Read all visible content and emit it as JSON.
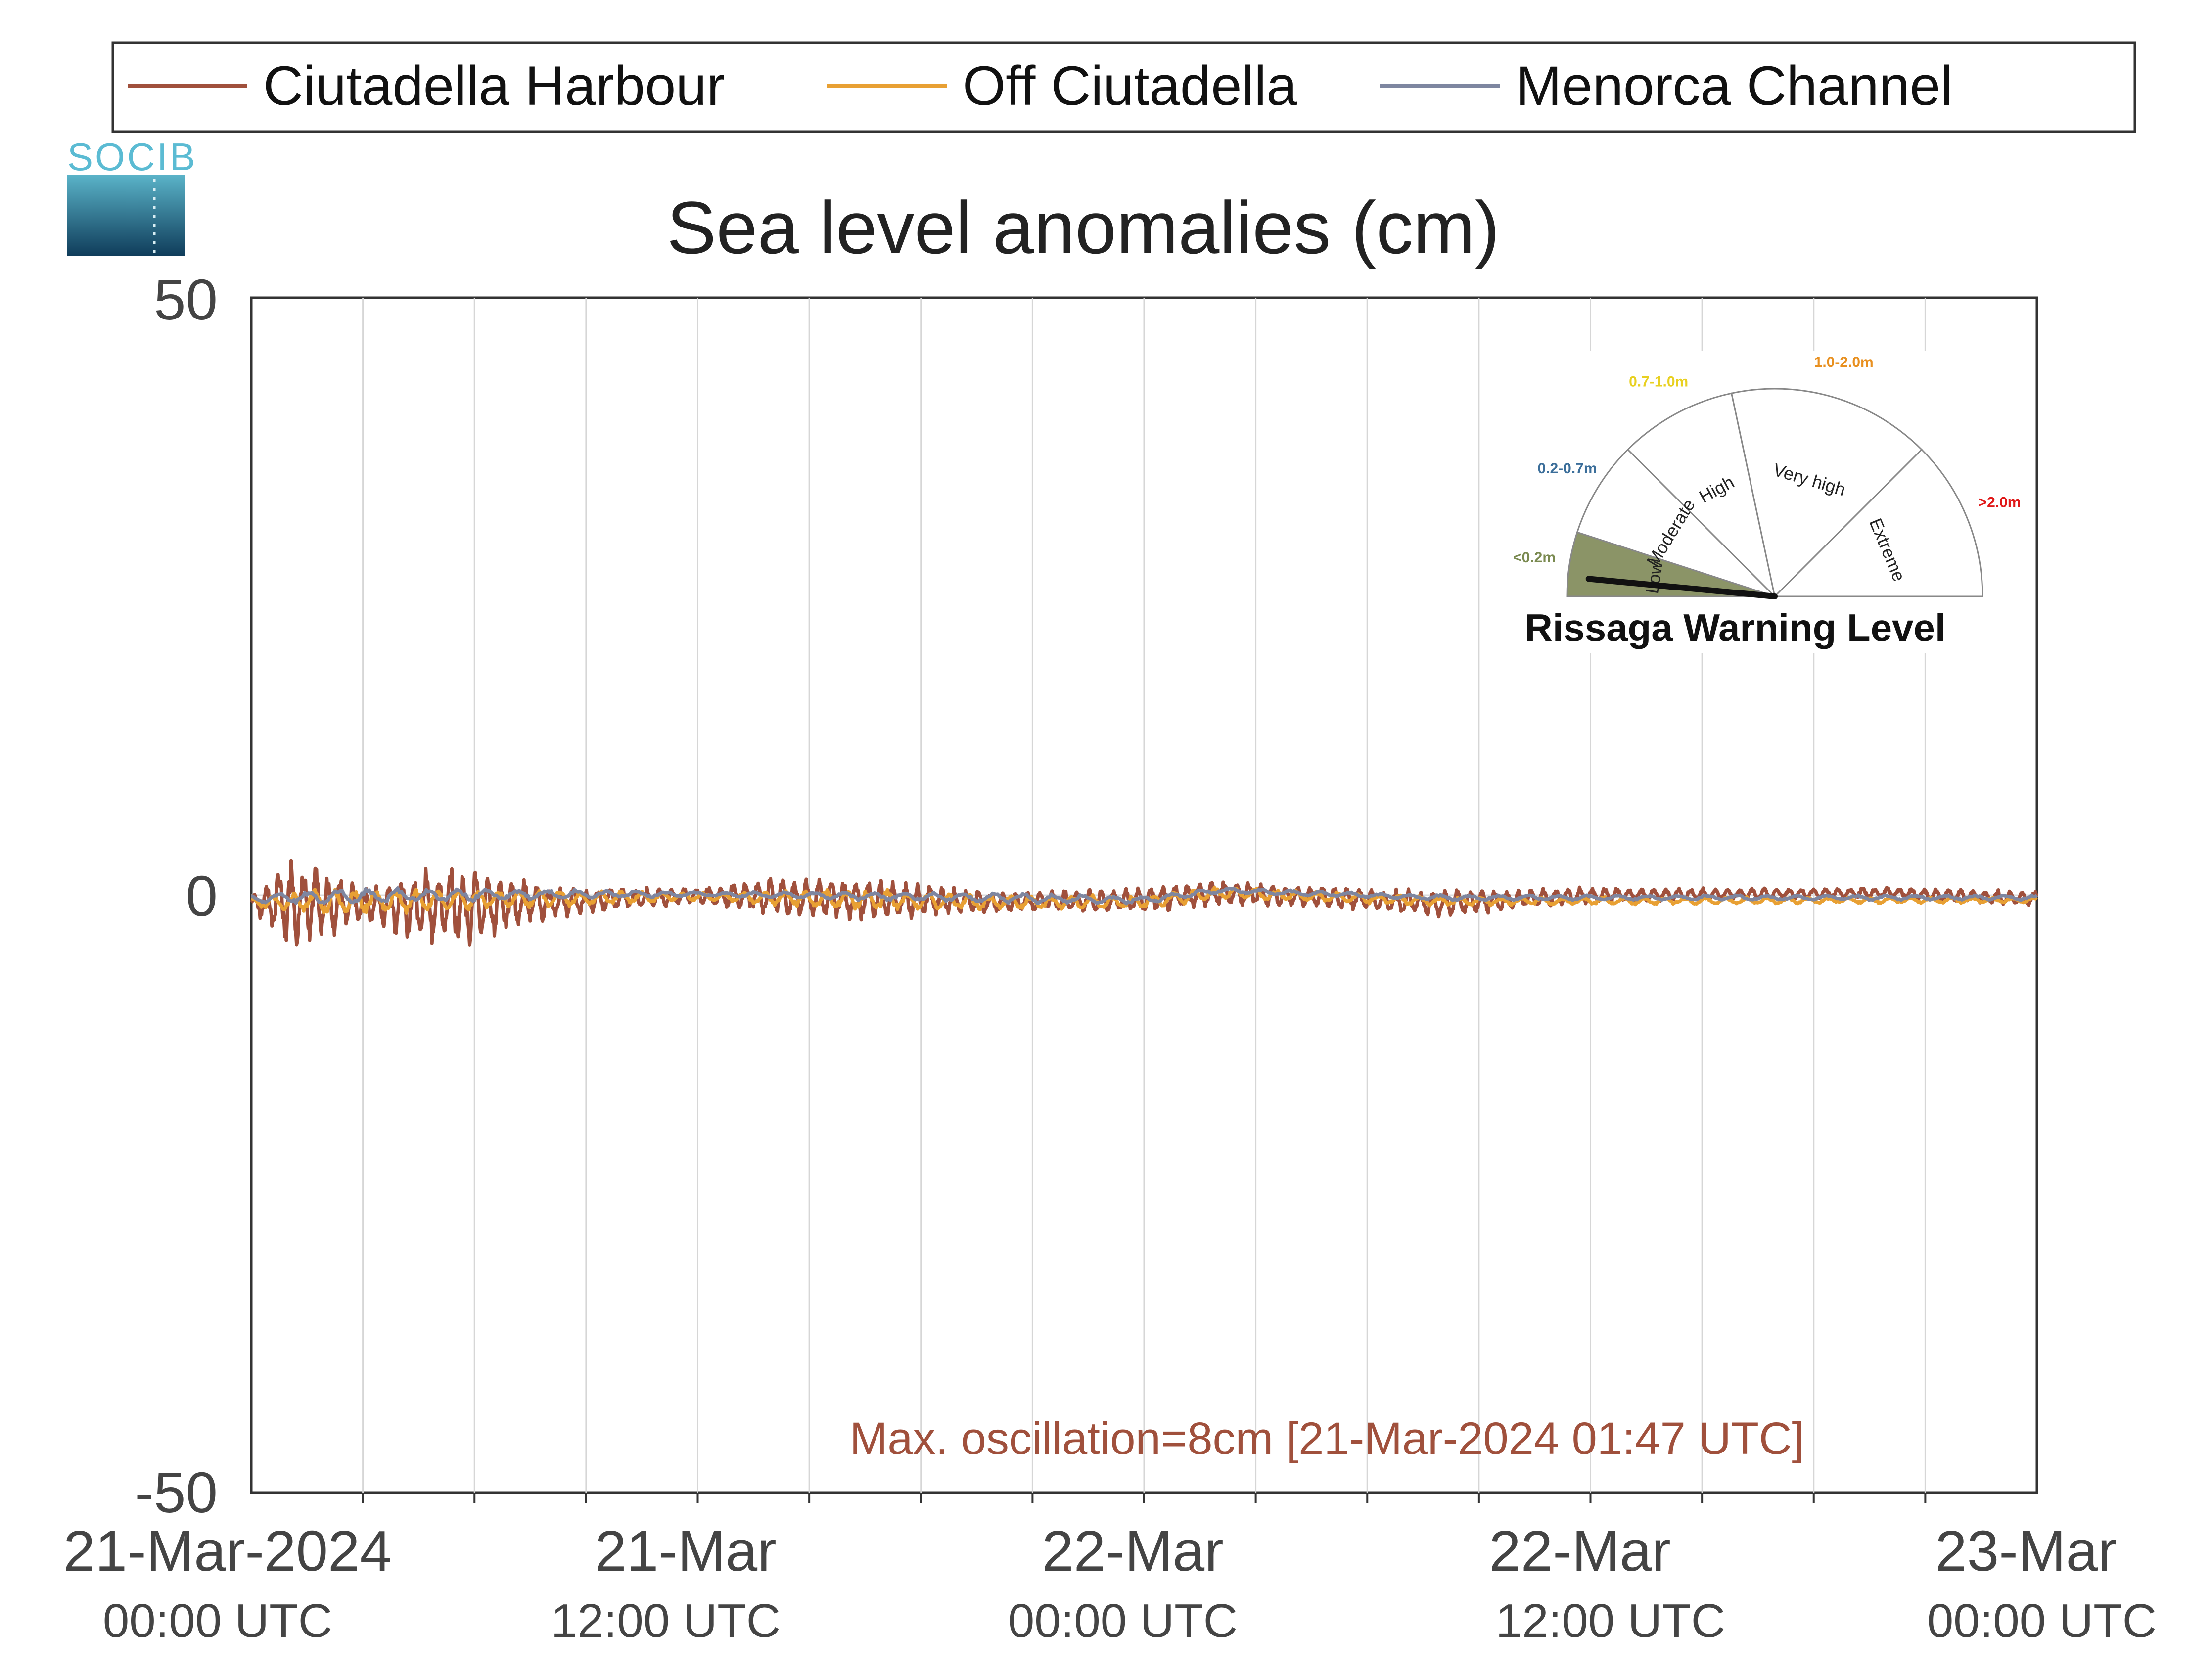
{
  "logo": {
    "text": "SOCIB"
  },
  "legend": {
    "items": [
      {
        "label": "Ciutadella Harbour",
        "color": "#a0503c"
      },
      {
        "label": "Off Ciutadella",
        "color": "#e8a033"
      },
      {
        "label": "Menorca Channel",
        "color": "#7e86a0"
      }
    ]
  },
  "chart_data": {
    "type": "line",
    "title": "Sea level anomalies (cm)",
    "xlabel": "",
    "ylabel": "",
    "ylim": [
      -50,
      50
    ],
    "y_ticks": [
      "50",
      "0",
      "-50"
    ],
    "x_range": [
      "2024-03-21T00:00",
      "2024-03-23T00:00"
    ],
    "x_ticks": [
      {
        "main": "21-Mar-2024",
        "sub": "00:00 UTC"
      },
      {
        "main": "21-Mar",
        "sub": "12:00 UTC"
      },
      {
        "main": "22-Mar",
        "sub": "00:00 UTC"
      },
      {
        "main": "22-Mar",
        "sub": "12:00 UTC"
      },
      {
        "main": "23-Mar",
        "sub": "00:00 UTC"
      }
    ],
    "grid": "vertical, every 3 hours",
    "legend_position": "top",
    "series": [
      {
        "name": "Ciutadella Harbour",
        "color": "#a0503c",
        "envelope_hours": [
          0,
          0.5,
          1,
          1.5,
          2,
          3,
          4,
          5,
          6,
          8,
          10,
          12,
          14,
          16,
          18,
          20,
          22,
          24,
          26,
          28,
          30,
          32,
          36,
          40,
          44,
          48
        ],
        "envelope_amplitude_cm": [
          0.6,
          1.8,
          3.8,
          3.2,
          2.6,
          1.2,
          2.4,
          2.8,
          2.8,
          1.2,
          0.8,
          0.6,
          1.4,
          1.6,
          1.2,
          0.8,
          0.8,
          1.0,
          1.0,
          0.8,
          0.8,
          1.0,
          0.6,
          0.4,
          0.4,
          0.6
        ],
        "mean_hours": [
          0,
          6,
          12,
          16,
          20,
          24,
          26,
          32,
          36,
          44,
          48
        ],
        "mean_cm": [
          -0.6,
          -0.9,
          0.0,
          -0.3,
          -0.6,
          -0.4,
          0.2,
          -0.7,
          0.0,
          0.2,
          -0.3
        ]
      },
      {
        "name": "Off Ciutadella",
        "color": "#e8a033",
        "envelope_hours": [
          0,
          2,
          6,
          12,
          16,
          20,
          24,
          28,
          36,
          48
        ],
        "envelope_amplitude_cm": [
          0.4,
          1.0,
          0.8,
          0.3,
          0.8,
          0.6,
          0.5,
          0.4,
          0.3,
          0.2
        ],
        "mean_hours": [
          0,
          12,
          20,
          24,
          26,
          32,
          48
        ],
        "mean_cm": [
          -0.6,
          -0.1,
          -0.6,
          -0.6,
          0.2,
          -0.5,
          -0.4
        ]
      },
      {
        "name": "Menorca Channel",
        "color": "#7e86a0",
        "envelope_hours": [
          0,
          2,
          6,
          12,
          20,
          24,
          28,
          36,
          48
        ],
        "envelope_amplitude_cm": [
          0.3,
          0.6,
          0.5,
          0.2,
          0.4,
          0.3,
          0.2,
          0.2,
          0.2
        ],
        "mean_hours": [
          0,
          4,
          12,
          20,
          24,
          26,
          32,
          48
        ],
        "mean_cm": [
          -0.3,
          0.0,
          0.1,
          -0.2,
          -0.4,
          0.4,
          -0.2,
          -0.2
        ]
      }
    ],
    "annotations": [
      {
        "text": "Max. oscillation=8cm [21-Mar-2024 01:47 UTC]",
        "color": "#a0503c"
      }
    ]
  },
  "gauge": {
    "title": "Rissaga Warning Level",
    "current_level": "Low",
    "needle_fraction": 0.03,
    "sectors": [
      {
        "label": "Low",
        "range": "<0.2m",
        "range_color": "#7a8a50",
        "fill": "#8b9467"
      },
      {
        "label": "Moderate",
        "range": "0.2-0.7m",
        "range_color": "#3b6e9a",
        "fill": "#ffffff"
      },
      {
        "label": "High",
        "range": "0.7-1.0m",
        "range_color": "#e8d020",
        "fill": "#ffffff"
      },
      {
        "label": "Very high",
        "range": "1.0-2.0m",
        "range_color": "#e89020",
        "fill": "#ffffff"
      },
      {
        "label": "Extreme",
        "range": ">2.0m",
        "range_color": "#e01818",
        "fill": "#ffffff"
      }
    ]
  }
}
